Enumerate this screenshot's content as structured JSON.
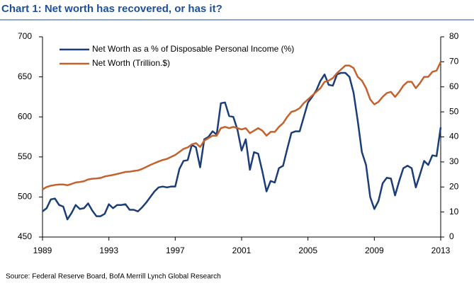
{
  "chart_data": {
    "type": "line",
    "title": "Chart 1: Net worth has recovered, or has it?",
    "source": "Source: Federal Reserve Board, BofA Merrill Lynch Global Research",
    "x": [
      1989,
      1989.25,
      1989.5,
      1989.75,
      1990,
      1990.25,
      1990.5,
      1990.75,
      1991,
      1991.25,
      1991.5,
      1991.75,
      1992,
      1992.25,
      1992.5,
      1992.75,
      1993,
      1993.25,
      1993.5,
      1993.75,
      1994,
      1994.25,
      1994.5,
      1994.75,
      1995,
      1995.25,
      1995.5,
      1995.75,
      1996,
      1996.25,
      1996.5,
      1996.75,
      1997,
      1997.25,
      1997.5,
      1997.75,
      1998,
      1998.25,
      1998.5,
      1998.75,
      1999,
      1999.25,
      1999.5,
      1999.75,
      2000,
      2000.25,
      2000.5,
      2000.75,
      2001,
      2001.25,
      2001.5,
      2001.75,
      2002,
      2002.25,
      2002.5,
      2002.75,
      2003,
      2003.25,
      2003.5,
      2003.75,
      2004,
      2004.25,
      2004.5,
      2004.75,
      2005,
      2005.25,
      2005.5,
      2005.75,
      2006,
      2006.25,
      2006.5,
      2006.75,
      2007,
      2007.25,
      2007.5,
      2007.75,
      2008,
      2008.25,
      2008.5,
      2008.75,
      2009,
      2009.25,
      2009.5,
      2009.75,
      2010,
      2010.25,
      2010.5,
      2010.75,
      2011,
      2011.25,
      2011.5,
      2011.75,
      2012,
      2012.25,
      2012.5,
      2012.75,
      2013
    ],
    "series": [
      {
        "name": "Net Worth as a % of Disposable Personal Income (%)",
        "color": "#1b3d78",
        "axis": "y",
        "values": [
          482,
          486,
          497,
          498,
          490,
          488,
          472,
          480,
          490,
          485,
          486,
          492,
          483,
          476,
          476,
          479,
          491,
          486,
          490,
          490,
          491,
          484,
          484,
          482,
          487,
          493,
          500,
          507,
          512,
          513,
          512,
          513,
          513,
          535,
          545,
          546,
          565,
          562,
          537,
          572,
          575,
          582,
          578,
          617,
          618,
          601,
          600,
          584,
          558,
          572,
          534,
          556,
          554,
          532,
          507,
          520,
          518,
          536,
          539,
          560,
          580,
          582,
          582,
          600,
          618,
          625,
          633,
          645,
          653,
          640,
          639,
          653,
          655,
          655,
          650,
          630,
          595,
          556,
          540,
          500,
          485,
          495,
          517,
          524,
          523,
          502,
          520,
          536,
          539,
          536,
          512,
          528,
          545,
          540,
          552,
          551,
          587
        ]
      },
      {
        "name": "Net Worth (Trillion.$)",
        "color": "#c4622d",
        "axis": "y2",
        "values": [
          19,
          20,
          20.5,
          20.8,
          21,
          21,
          20.7,
          21.2,
          21.8,
          22,
          22.3,
          23,
          23.3,
          23.4,
          23.6,
          24.2,
          24.5,
          24.8,
          25.2,
          25.6,
          26,
          26.1,
          26.4,
          26.6,
          27.2,
          28,
          28.8,
          29.5,
          30.2,
          30.8,
          31.2,
          32,
          32.8,
          34,
          35.2,
          35.8,
          37,
          37.5,
          36,
          38.5,
          39.5,
          40.5,
          40.5,
          43.5,
          44,
          43.5,
          44,
          43.5,
          43,
          43.5,
          41.5,
          42.5,
          43.5,
          42.5,
          40.5,
          42,
          42,
          44,
          45.5,
          48,
          50,
          50.5,
          51.5,
          53.5,
          55,
          56.5,
          58,
          59.5,
          62,
          62.5,
          63.5,
          65.5,
          67,
          68.5,
          68.5,
          67.5,
          64,
          62.5,
          59.5,
          55,
          53,
          54,
          56,
          57.5,
          58,
          56,
          58,
          60.5,
          62,
          62,
          59.5,
          61.5,
          64,
          64,
          66,
          66.5,
          70
        ]
      }
    ],
    "xlim": [
      1989,
      2013
    ],
    "xticks": [
      1989,
      1993,
      1997,
      2001,
      2005,
      2009,
      2013
    ],
    "ylim": [
      450,
      700
    ],
    "yticks": [
      450,
      500,
      550,
      600,
      650,
      700
    ],
    "y2lim": [
      0,
      80
    ],
    "y2ticks": [
      0,
      10,
      20,
      30,
      40,
      50,
      60,
      70,
      80
    ],
    "legend": "upper-left"
  }
}
